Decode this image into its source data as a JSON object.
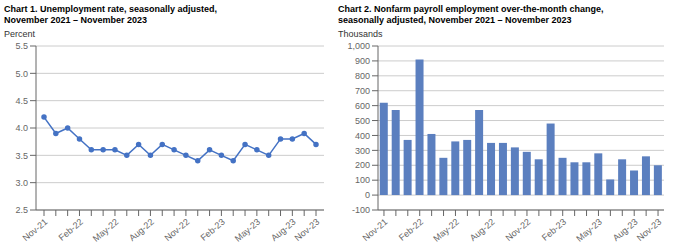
{
  "chart_data": [
    {
      "type": "line",
      "title": "Chart 1. Unemployment rate, seasonally adjusted,",
      "subtitle": "November 2021 – November 2023",
      "y_label": "Percent",
      "categories": [
        "Nov-21",
        null,
        null,
        "Feb-22",
        null,
        null,
        "May-22",
        null,
        null,
        "Aug-22",
        null,
        null,
        "Nov-22",
        null,
        null,
        "Feb-23",
        null,
        null,
        "May-23",
        null,
        null,
        "Aug-23",
        null,
        "Nov-23"
      ],
      "values": [
        4.2,
        3.9,
        4.0,
        3.8,
        3.6,
        3.6,
        3.6,
        3.5,
        3.7,
        3.5,
        3.7,
        3.6,
        3.5,
        3.4,
        3.6,
        3.5,
        3.4,
        3.7,
        3.6,
        3.5,
        3.8,
        3.8,
        3.9,
        3.7
      ],
      "color": "#4472C4",
      "marker": "circle",
      "ylim": [
        2.5,
        5.5
      ],
      "yticks": [
        2.5,
        {
          "value": 3,
          "label": "3.0"
        },
        3.5,
        {
          "value": 4,
          "label": "4.0"
        },
        4.5,
        {
          "value": 5,
          "label": "5.0"
        },
        5.5
      ],
      "grid": true
    },
    {
      "type": "bar",
      "title": "Chart 2. Nonfarm payroll employment over-the-month change,",
      "subtitle": "seasonally adjusted, November 2021 – November 2023",
      "y_label": "Thousands",
      "categories": [
        "Nov-21",
        null,
        null,
        "Feb-22",
        null,
        null,
        "May-22",
        null,
        null,
        "Aug-22",
        null,
        null,
        "Nov-22",
        null,
        null,
        "Feb-23",
        null,
        null,
        "May-23",
        null,
        null,
        "Aug-23",
        null,
        "Nov-23"
      ],
      "values": [
        620,
        570,
        370,
        910,
        410,
        250,
        360,
        370,
        570,
        350,
        350,
        320,
        290,
        240,
        480,
        250,
        220,
        220,
        280,
        105,
        240,
        165,
        260,
        200
      ],
      "color": "#5B7FBF",
      "ylim": [
        -100,
        1000
      ],
      "yticks": [
        -100,
        0,
        100,
        200,
        300,
        400,
        500,
        600,
        700,
        800,
        900,
        {
          "value": 1000,
          "label": "1,000"
        }
      ],
      "grid": true
    }
  ]
}
